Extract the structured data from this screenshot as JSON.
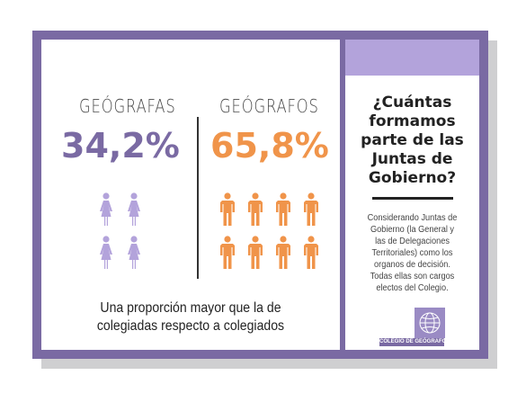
{
  "left": {
    "female_label": "GEÓGRAFAS",
    "male_label": "GEÓGRAFOS",
    "female_pct": "34,2%",
    "male_pct": "65,8%",
    "caption_line1": "Una proporción mayor que la de",
    "caption_line2": "colegiadas respecto a colegiados"
  },
  "right": {
    "question_lines": [
      "¿Cuántas",
      "formamos",
      "parte de las",
      "Juntas de",
      "Gobierno?"
    ],
    "desc_lines": [
      "Considerando Juntas de",
      "Gobierno (la General y",
      "las de Delegaciones",
      "Territoriales) como los",
      "organos de decisión.",
      "Todas ellas son cargos",
      "electos del Colegio."
    ],
    "logo_text": "COLEGIO DE GEÓGRAFOS"
  },
  "colors": {
    "frame": "#7a6aa3",
    "female": "#7a6aa3",
    "female_icon": "#b3a3db",
    "male": "#f0944a"
  },
  "icons": {
    "female": "woman-icon",
    "male": "man-icon",
    "logo": "globe-icon"
  }
}
